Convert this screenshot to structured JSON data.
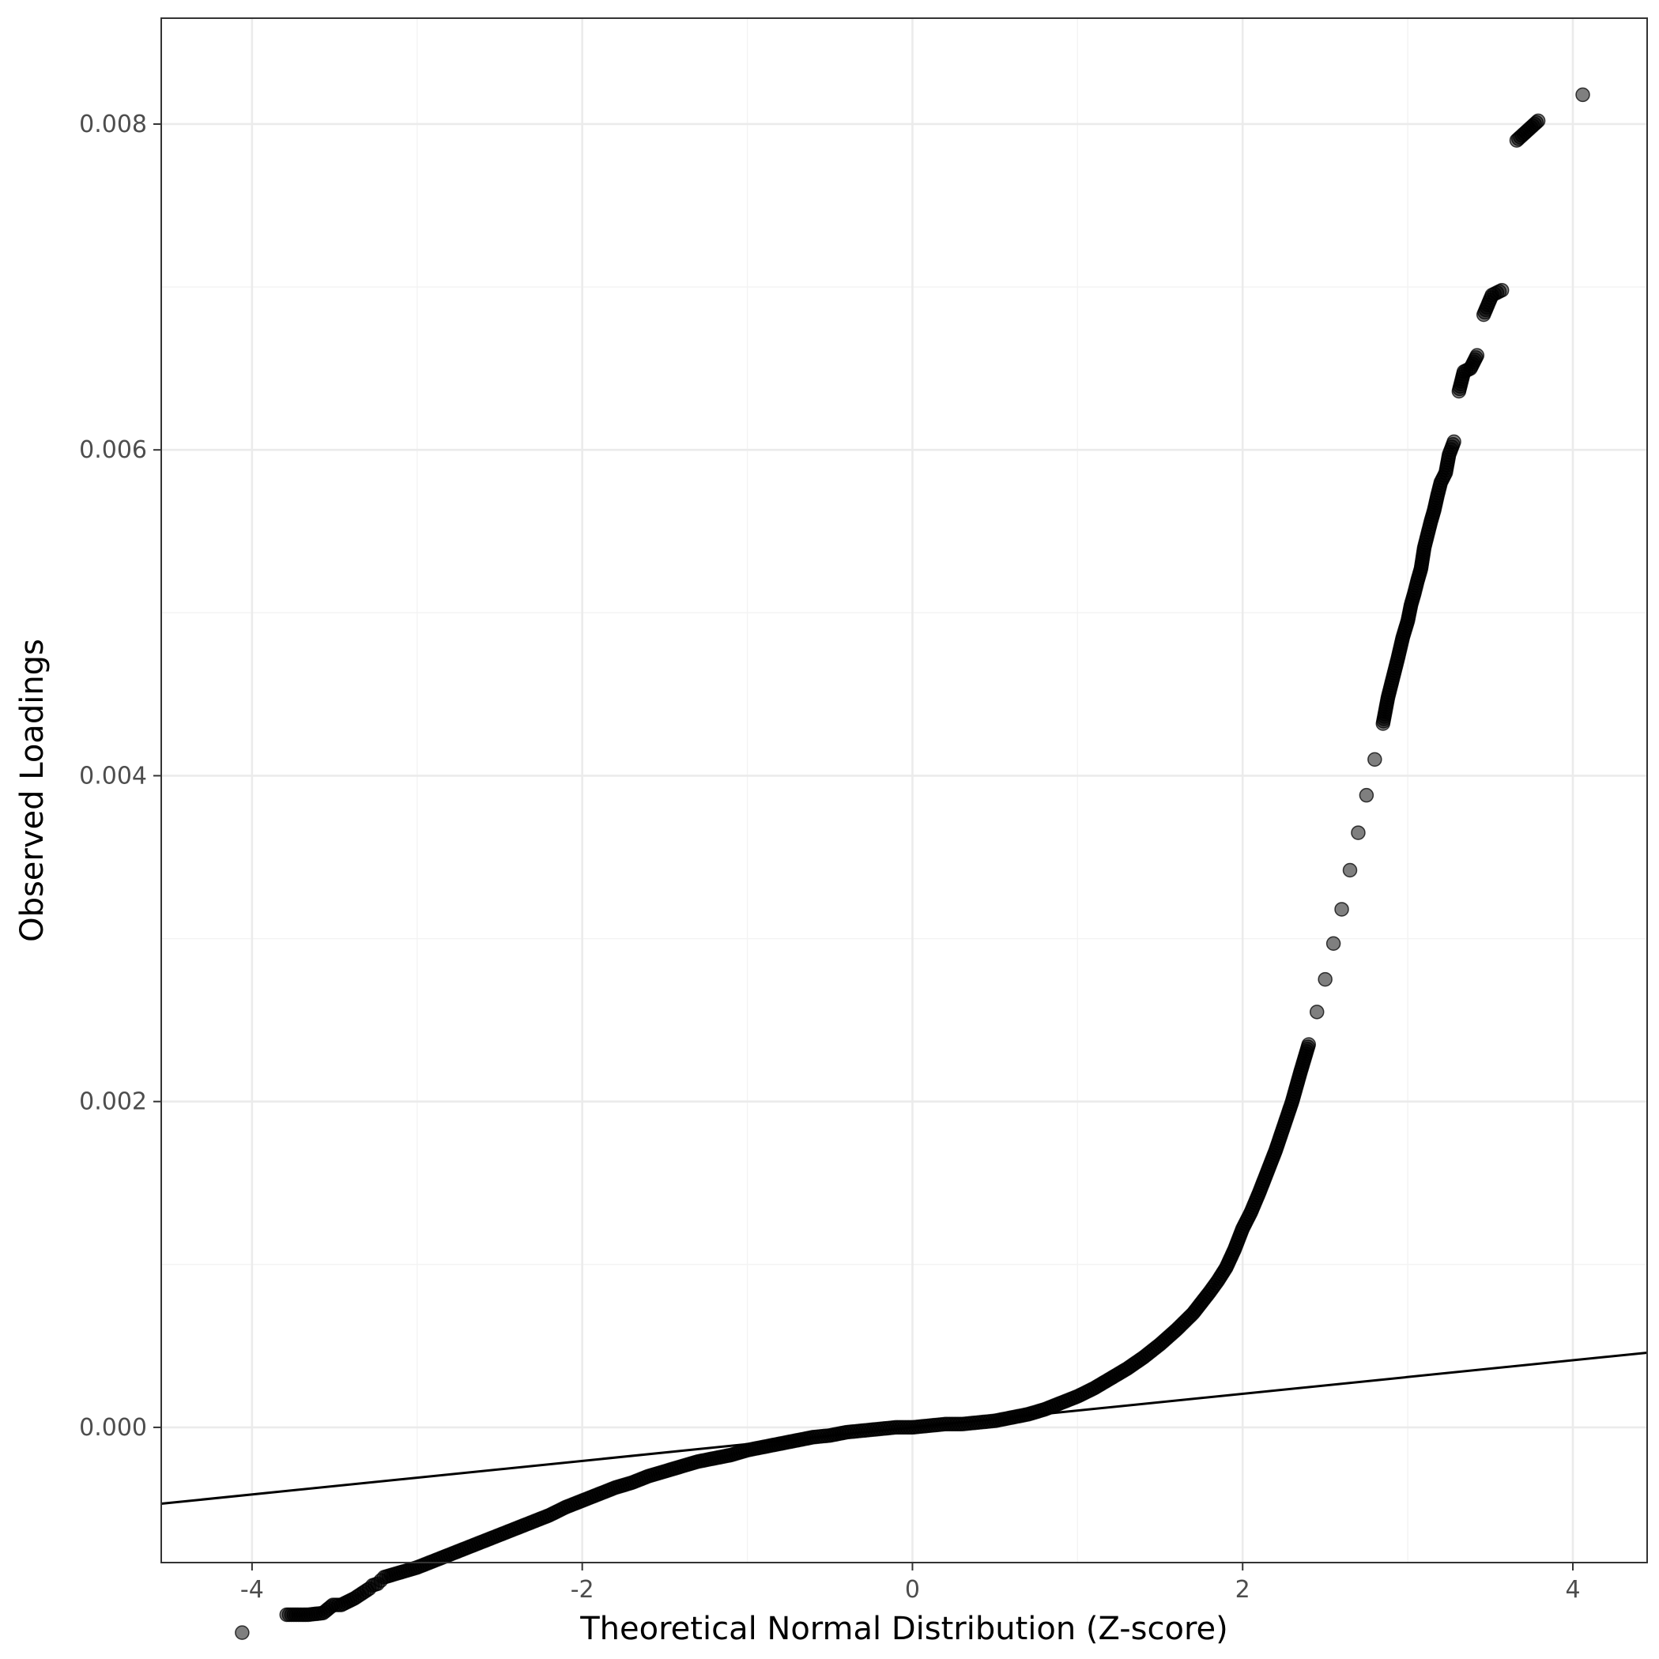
{
  "chart_data": {
    "type": "scatter",
    "title": "",
    "xlabel": "Theoretical Normal Distribution (Z-score)",
    "ylabel": "Observed Loadings",
    "xlim": [
      -4.55,
      4.45
    ],
    "ylim": [
      -0.00083,
      0.00865
    ],
    "x_ticks": [
      -4,
      -2,
      0,
      2,
      4
    ],
    "x_tick_labels": [
      "-4",
      "-2",
      "0",
      "2",
      "4"
    ],
    "y_ticks": [
      0.0,
      0.002,
      0.004,
      0.006,
      0.008
    ],
    "y_tick_labels": [
      "0.000",
      "0.002",
      "0.004",
      "0.006",
      "0.008"
    ],
    "grid": true,
    "legend": "none",
    "reference_line": {
      "intercept": 0.0,
      "slope": 0.000103
    },
    "point_color": "#000000",
    "line_color": "#000000",
    "series": [
      {
        "x": [
          -4.06,
          -3.79,
          -3.66,
          -3.57,
          -3.51,
          -3.46,
          -3.42,
          -3.38,
          -3.35,
          -3.32,
          -3.29,
          -3.27,
          -3.24,
          -3.22,
          -3.2,
          -3.1,
          -3.0,
          -2.9,
          -2.8,
          -2.7,
          -2.6,
          -2.5,
          -2.4,
          -2.3,
          -2.2,
          -2.1,
          -2.0,
          -1.9,
          -1.8,
          -1.7,
          -1.6,
          -1.5,
          -1.4,
          -1.3,
          -1.2,
          -1.1,
          -1.0,
          -0.9,
          -0.8,
          -0.7,
          -0.6,
          -0.5,
          -0.4,
          -0.3,
          -0.2,
          -0.1,
          0.0,
          0.1,
          0.2,
          0.3,
          0.4,
          0.5,
          0.6,
          0.7,
          0.8,
          0.9,
          1.0,
          1.1,
          1.2,
          1.3,
          1.4,
          1.5,
          1.6,
          1.7,
          1.8,
          1.85,
          1.9,
          1.95,
          2.0,
          2.05,
          2.1,
          2.15,
          2.2,
          2.25,
          2.3,
          2.35,
          2.4,
          2.45,
          2.5,
          2.55,
          2.6,
          2.65,
          2.7,
          2.75,
          2.8,
          2.85,
          2.88,
          2.91,
          2.94,
          2.97,
          3.0,
          3.02,
          3.04,
          3.06,
          3.08,
          3.1,
          3.12,
          3.14,
          3.16,
          3.18,
          3.2,
          3.23,
          3.25,
          3.28,
          3.31,
          3.34,
          3.38,
          3.42,
          3.46,
          3.51,
          3.57,
          3.66,
          3.79,
          4.06
        ],
        "y": [
          -0.00126,
          -0.00115,
          -0.00115,
          -0.00114,
          -0.00109,
          -0.00109,
          -0.00107,
          -0.00105,
          -0.00103,
          -0.00101,
          -0.00099,
          -0.00097,
          -0.00096,
          -0.00094,
          -0.00092,
          -0.00089,
          -0.00086,
          -0.00082,
          -0.00078,
          -0.00074,
          -0.0007,
          -0.00066,
          -0.00062,
          -0.00058,
          -0.00054,
          -0.00049,
          -0.00045,
          -0.00041,
          -0.00037,
          -0.00034,
          -0.0003,
          -0.00027,
          -0.00024,
          -0.00021,
          -0.00019,
          -0.00017,
          -0.00014,
          -0.00012,
          -0.0001,
          -8e-05,
          -6e-05,
          -5e-05,
          -3e-05,
          -2e-05,
          -1e-05,
          0.0,
          0.0,
          1e-05,
          2e-05,
          2e-05,
          3e-05,
          4e-05,
          6e-05,
          8e-05,
          0.00011,
          0.00015,
          0.00019,
          0.00024,
          0.0003,
          0.00036,
          0.00043,
          0.00051,
          0.0006,
          0.0007,
          0.00083,
          0.0009,
          0.00098,
          0.00109,
          0.00122,
          0.00132,
          0.00144,
          0.00157,
          0.0017,
          0.00185,
          0.002,
          0.00218,
          0.00235,
          0.00255,
          0.00275,
          0.00297,
          0.00318,
          0.00342,
          0.00365,
          0.00388,
          0.0041,
          0.00432,
          0.00448,
          0.0046,
          0.00472,
          0.00485,
          0.00495,
          0.00505,
          0.00512,
          0.0052,
          0.00527,
          0.0054,
          0.00548,
          0.00556,
          0.00563,
          0.00572,
          0.0058,
          0.00586,
          0.00597,
          0.00605,
          0.00636,
          0.00648,
          0.0065,
          0.00658,
          0.00683,
          0.00695,
          0.00698,
          0.0079,
          0.00802,
          0.00818
        ]
      }
    ]
  }
}
